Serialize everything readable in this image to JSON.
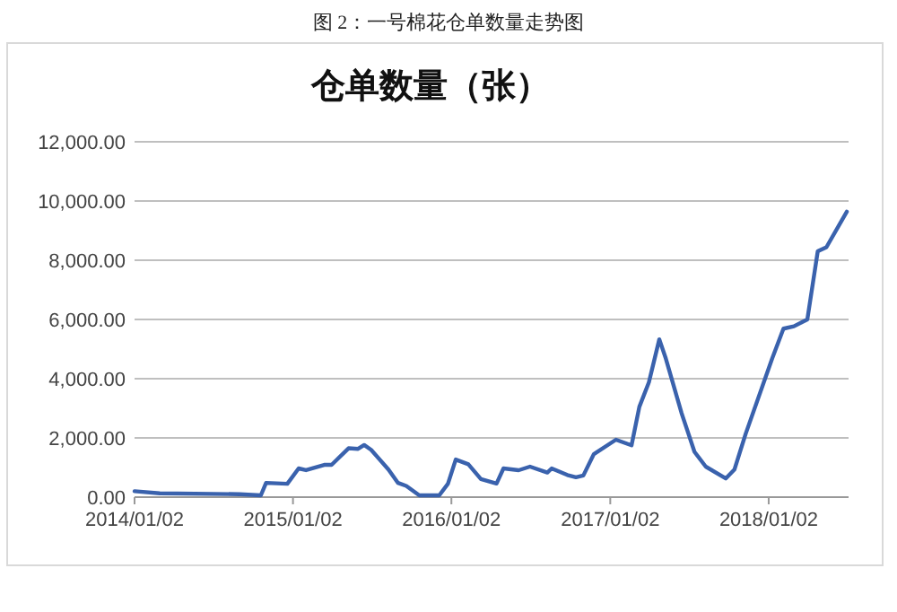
{
  "chart_data": {
    "type": "line",
    "title": "仓单数量（张）",
    "annotations": [
      "图 2：一号棉花仓单数量走势图"
    ],
    "x": [
      "2014-01-02",
      "2014-03-01",
      "2014-09-01",
      "2014-10-20",
      "2014-11-01",
      "2014-12-20",
      "2015-01-15",
      "2015-02-01",
      "2015-03-15",
      "2015-04-01",
      "2015-05-10",
      "2015-06-01",
      "2015-06-15",
      "2015-07-01",
      "2015-08-10",
      "2015-09-01",
      "2015-09-20",
      "2015-10-20",
      "2015-12-05",
      "2015-12-25",
      "2016-01-12",
      "2016-02-10",
      "2016-03-10",
      "2016-04-15",
      "2016-05-01",
      "2016-06-05",
      "2016-07-01",
      "2016-08-10",
      "2016-08-20",
      "2016-09-25",
      "2016-10-15",
      "2016-11-01",
      "2016-11-25",
      "2017-01-15",
      "2017-02-20",
      "2017-03-10",
      "2017-04-01",
      "2017-04-25",
      "2017-05-10",
      "2017-06-15",
      "2017-07-15",
      "2017-08-10",
      "2017-09-25",
      "2017-10-15",
      "2017-11-10",
      "2018-01-10",
      "2018-02-05",
      "2018-03-01",
      "2018-04-01",
      "2018-04-25",
      "2018-05-15",
      "2018-07-01"
    ],
    "series": [
      {
        "color": "#3a62ad",
        "values": [
          200,
          130,
          100,
          60,
          480,
          450,
          970,
          910,
          1090,
          1090,
          1650,
          1630,
          1760,
          1600,
          930,
          480,
          380,
          60,
          60,
          450,
          1270,
          1110,
          610,
          460,
          970,
          910,
          1030,
          830,
          970,
          750,
          670,
          730,
          1450,
          1940,
          1750,
          3050,
          3880,
          5330,
          4680,
          2850,
          1530,
          1030,
          630,
          930,
          2140,
          4680,
          5690,
          5770,
          6000,
          8300,
          8440,
          9640
        ]
      }
    ],
    "xlim": [
      "2014-01-02",
      "2018-07-05"
    ],
    "xticks": [
      {
        "value": "2014-01-02",
        "label": "2014/01/02"
      },
      {
        "value": "2015-01-02",
        "label": "2015/01/02"
      },
      {
        "value": "2016-01-02",
        "label": "2016/01/02"
      },
      {
        "value": "2017-01-02",
        "label": "2017/01/02"
      },
      {
        "value": "2018-01-02",
        "label": "2018/01/02"
      }
    ],
    "ylim": [
      0,
      12000
    ],
    "yticks": [
      {
        "value": 0,
        "label": "0.00"
      },
      {
        "value": 2000,
        "label": "2,000.00"
      },
      {
        "value": 4000,
        "label": "4,000.00"
      },
      {
        "value": 6000,
        "label": "6,000.00"
      },
      {
        "value": 8000,
        "label": "8,000.00"
      },
      {
        "value": 10000,
        "label": "10,000.00"
      },
      {
        "value": 12000,
        "label": "12,000.00"
      }
    ],
    "grid": "y",
    "marker": "none",
    "line_style": "solid"
  }
}
